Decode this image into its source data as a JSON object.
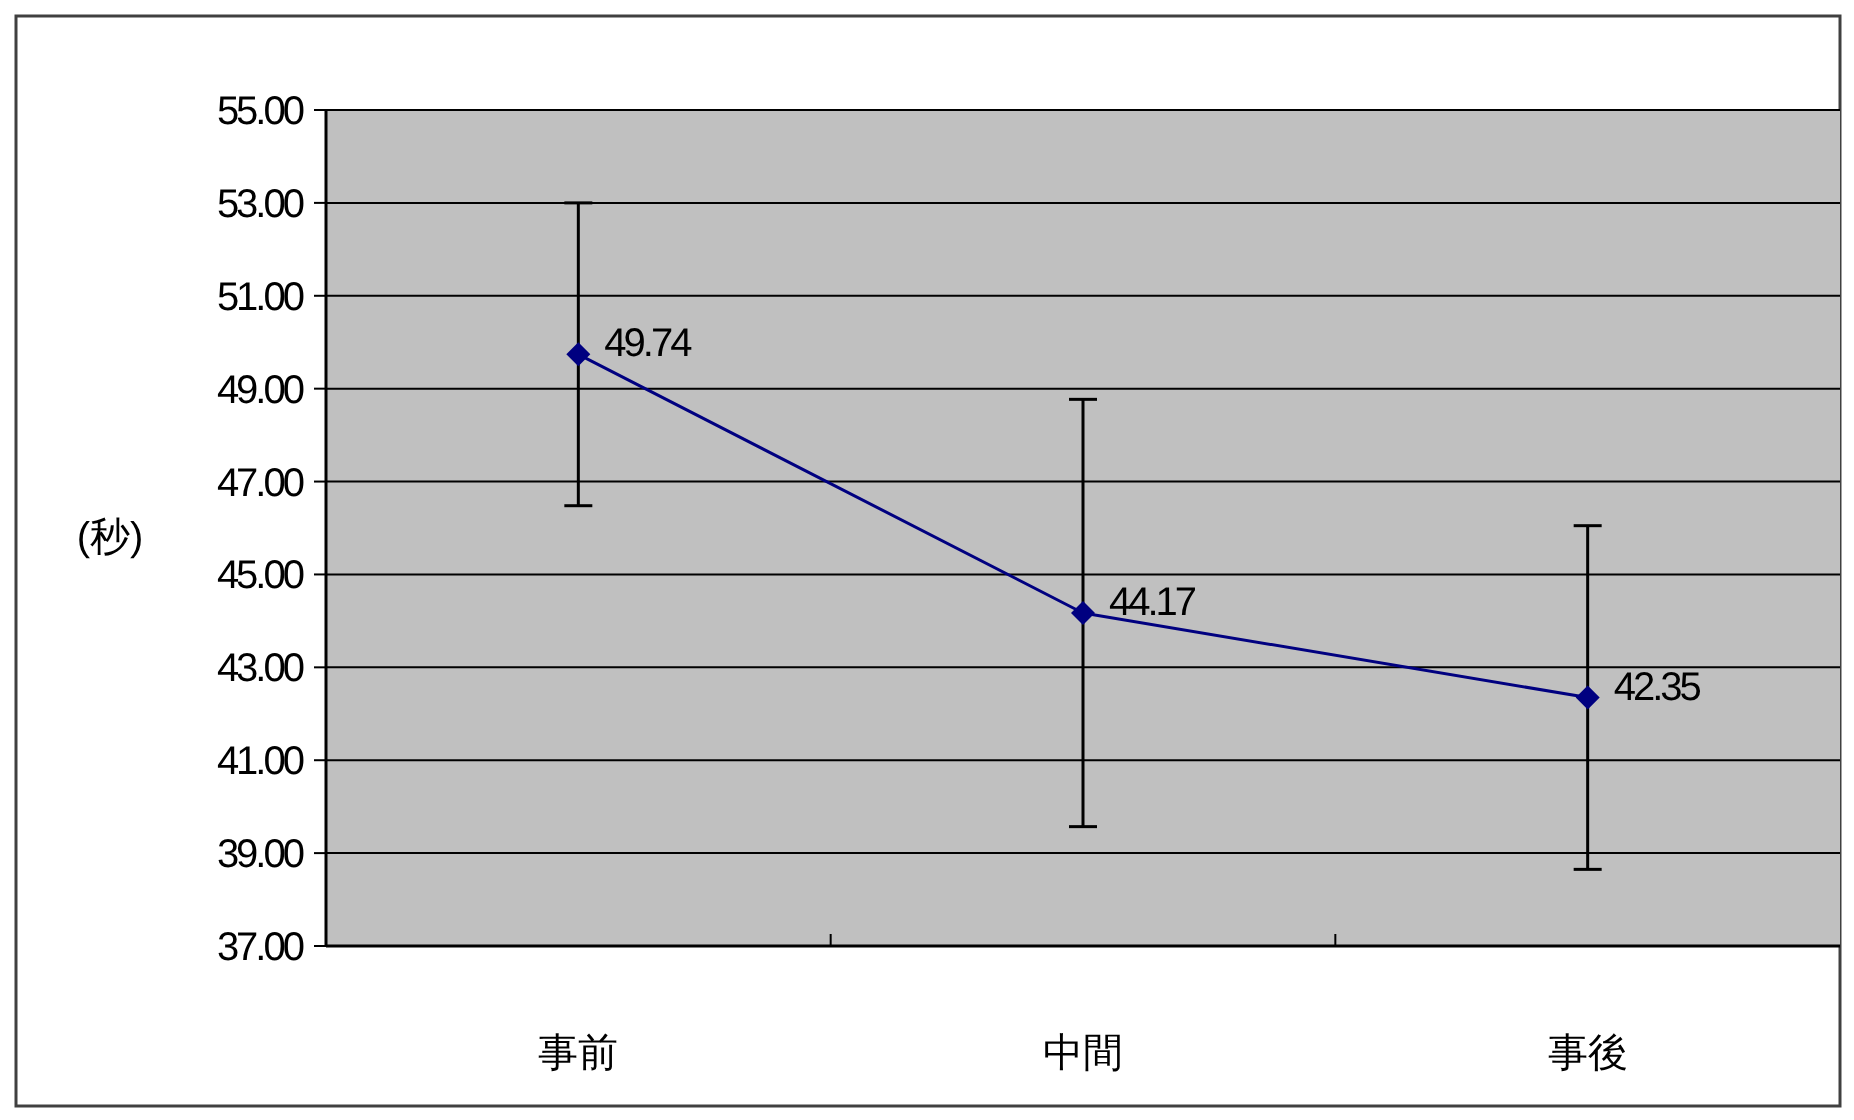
{
  "chart_data": {
    "type": "line",
    "ylabel": "(秒)",
    "categories": [
      "事前",
      "中間",
      "事後"
    ],
    "series": [
      {
        "color": "#000080",
        "values": [
          49.74,
          44.17,
          42.35
        ],
        "errors": [
          3.26,
          4.6,
          3.7
        ]
      }
    ],
    "ylim": [
      37,
      55
    ],
    "yticks": [
      {
        "value": 37,
        "label": "37.00"
      },
      {
        "value": 39,
        "label": "39.00"
      },
      {
        "value": 41,
        "label": "41.00"
      },
      {
        "value": 43,
        "label": "43.00"
      },
      {
        "value": 45,
        "label": "45.00"
      },
      {
        "value": 47,
        "label": "47.00"
      },
      {
        "value": 49,
        "label": "49.00"
      },
      {
        "value": 51,
        "label": "51.00"
      },
      {
        "value": 53,
        "label": "53.00"
      },
      {
        "value": 55,
        "label": "55.00"
      }
    ],
    "grid": "y",
    "marker": "diamond",
    "line_style": "solid",
    "data_labels": true
  }
}
